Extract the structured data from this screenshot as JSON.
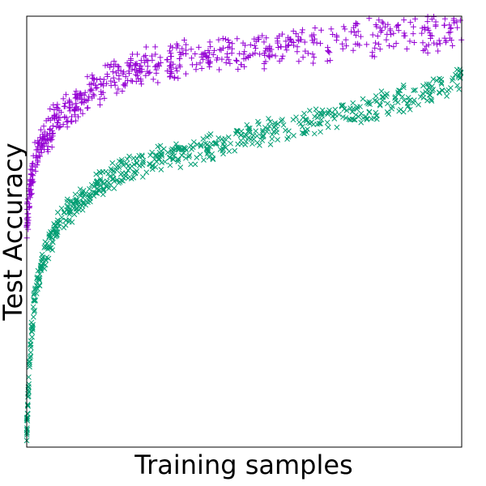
{
  "chart_data": {
    "type": "scatter",
    "title": "",
    "xlabel": "Training samples",
    "ylabel": "Test Accuracy",
    "xlim": [
      0,
      1
    ],
    "ylim": [
      0,
      1
    ],
    "grid": false,
    "legend": "none",
    "series": [
      {
        "marker": "+",
        "color": "#9400D3",
        "trend": [
          [
            0.0,
            0.52
          ],
          [
            0.01,
            0.62
          ],
          [
            0.02,
            0.67
          ],
          [
            0.04,
            0.72
          ],
          [
            0.07,
            0.76
          ],
          [
            0.1,
            0.79
          ],
          [
            0.15,
            0.83
          ],
          [
            0.2,
            0.86
          ],
          [
            0.3,
            0.89
          ],
          [
            0.4,
            0.91
          ],
          [
            0.5,
            0.92
          ],
          [
            0.6,
            0.93
          ],
          [
            0.7,
            0.94
          ],
          [
            0.8,
            0.95
          ],
          [
            0.9,
            0.96
          ],
          [
            1.0,
            0.97
          ]
        ],
        "spread": 0.035,
        "count": 650
      },
      {
        "marker": "x",
        "color": "#009E73",
        "trend": [
          [
            0.0,
            0.04
          ],
          [
            0.005,
            0.16
          ],
          [
            0.01,
            0.26
          ],
          [
            0.02,
            0.36
          ],
          [
            0.04,
            0.44
          ],
          [
            0.07,
            0.51
          ],
          [
            0.1,
            0.55
          ],
          [
            0.15,
            0.6
          ],
          [
            0.2,
            0.63
          ],
          [
            0.3,
            0.67
          ],
          [
            0.4,
            0.69
          ],
          [
            0.5,
            0.72
          ],
          [
            0.6,
            0.74
          ],
          [
            0.7,
            0.77
          ],
          [
            0.8,
            0.79
          ],
          [
            0.9,
            0.82
          ],
          [
            1.0,
            0.85
          ]
        ],
        "spread": 0.025,
        "count": 650
      }
    ]
  }
}
